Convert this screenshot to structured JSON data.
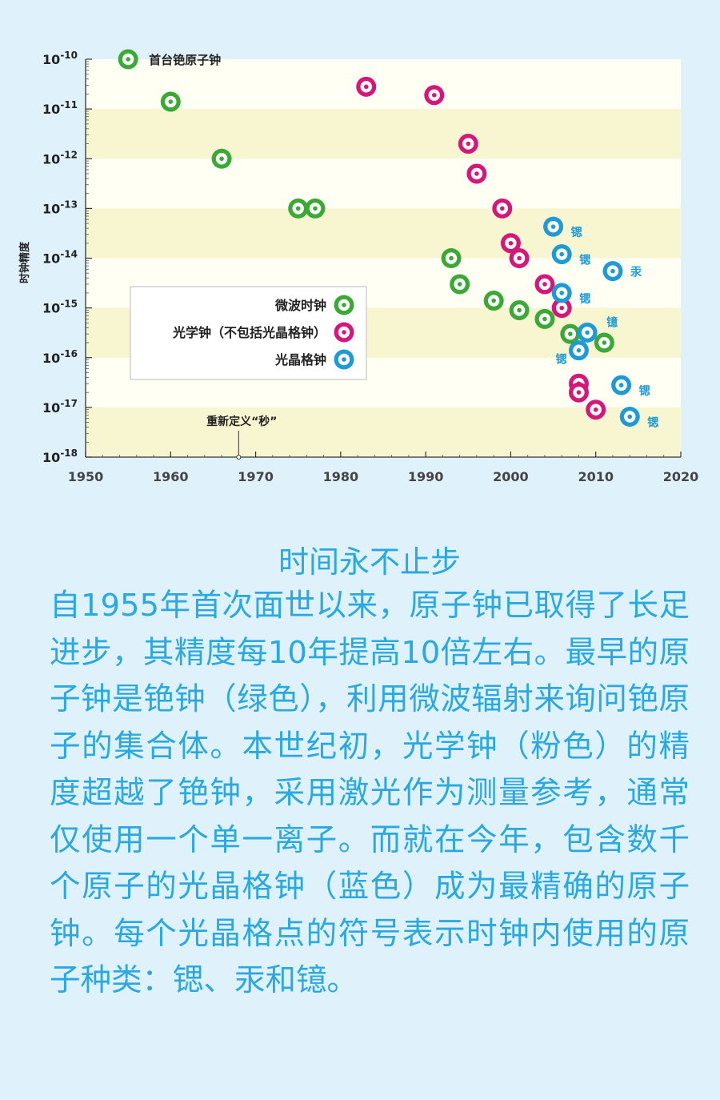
{
  "chart_data": {
    "type": "scatter",
    "ylabel": "时钟精度",
    "xlabel": "",
    "xlim": [
      1950,
      2020
    ],
    "xticks": [
      "1950",
      "1960",
      "1970",
      "1980",
      "1990",
      "2000",
      "2010",
      "2020"
    ],
    "yscale": "log",
    "ylim": [
      1e-18,
      1e-10
    ],
    "yticks": [
      {
        "base": "10",
        "exp": "-10"
      },
      {
        "base": "10",
        "exp": "-11"
      },
      {
        "base": "10",
        "exp": "-12"
      },
      {
        "base": "10",
        "exp": "-13"
      },
      {
        "base": "10",
        "exp": "-14"
      },
      {
        "base": "10",
        "exp": "-15"
      },
      {
        "base": "10",
        "exp": "-16"
      },
      {
        "base": "10",
        "exp": "-17"
      },
      {
        "base": "10",
        "exp": "-18"
      }
    ],
    "grid": "alternating horizontal bands",
    "legend_position": "middle-left",
    "series": [
      {
        "name": "微波时钟",
        "color": "#3aa935",
        "points": [
          {
            "x": 1955,
            "y": 1e-10,
            "label": "首台铯原子钟"
          },
          {
            "x": 1960,
            "y": 1.4e-11
          },
          {
            "x": 1966,
            "y": 1e-12
          },
          {
            "x": 1975,
            "y": 1e-13
          },
          {
            "x": 1977,
            "y": 1e-13
          },
          {
            "x": 1993,
            "y": 1e-14
          },
          {
            "x": 1994,
            "y": 3e-15
          },
          {
            "x": 1998,
            "y": 1.4e-15
          },
          {
            "x": 2001,
            "y": 9e-16
          },
          {
            "x": 2004,
            "y": 6e-16
          },
          {
            "x": 2007,
            "y": 3e-16
          },
          {
            "x": 2011,
            "y": 2e-16
          }
        ]
      },
      {
        "name": "光学钟（不包括光晶格钟）",
        "color": "#d6177a",
        "points": [
          {
            "x": 1983,
            "y": 2.8e-11
          },
          {
            "x": 1991,
            "y": 1.9e-11
          },
          {
            "x": 1995,
            "y": 2e-12
          },
          {
            "x": 1996,
            "y": 5e-13
          },
          {
            "x": 1999,
            "y": 1e-13
          },
          {
            "x": 2000,
            "y": 2e-14
          },
          {
            "x": 2001,
            "y": 1e-14
          },
          {
            "x": 2004,
            "y": 3e-15
          },
          {
            "x": 2006,
            "y": 1e-15
          },
          {
            "x": 2008,
            "y": 3e-17
          },
          {
            "x": 2008,
            "y": 2e-17
          },
          {
            "x": 2010,
            "y": 9e-18
          }
        ]
      },
      {
        "name": "光晶格钟",
        "color": "#1e9ad6",
        "points": [
          {
            "x": 2005,
            "y": 4.3e-14,
            "label": "锶"
          },
          {
            "x": 2006,
            "y": 1.2e-14,
            "label": "锶"
          },
          {
            "x": 2012,
            "y": 5.5e-15,
            "label": "汞"
          },
          {
            "x": 2006,
            "y": 2e-15,
            "label": "锶"
          },
          {
            "x": 2009,
            "y": 3.2e-16,
            "label": "镱"
          },
          {
            "x": 2008,
            "y": 1.4e-16,
            "label": "锶"
          },
          {
            "x": 2013,
            "y": 2.8e-17,
            "label": "锶"
          },
          {
            "x": 2014,
            "y": 6.5e-18,
            "label": "锶"
          }
        ]
      }
    ],
    "annotations": [
      {
        "x": 1968,
        "text": "重新定义“秒”"
      }
    ]
  },
  "caption": {
    "title": "时间永不止步",
    "body": "自1955年首次面世以来，原子钟已取得了长足进步，其精度每10年提高10倍左右。最早的原子钟是铯钟（绿色），利用微波辐射来询问铯原子的集合体。本世纪初，光学钟（粉色）的精度超越了铯钟，采用激光作为测量参考，通常仅使用一个单一离子。而就在今年，包含数千个原子的光晶格钟（蓝色）成为最精确的原子钟。每个光晶格点的符号表示时钟内使用的原子种类：锶、汞和镱。"
  },
  "colors": {
    "background": "#dff1fb",
    "band_light": "#fffff3",
    "band_dark": "#f8f6d0",
    "text": "#2aa8e0"
  }
}
